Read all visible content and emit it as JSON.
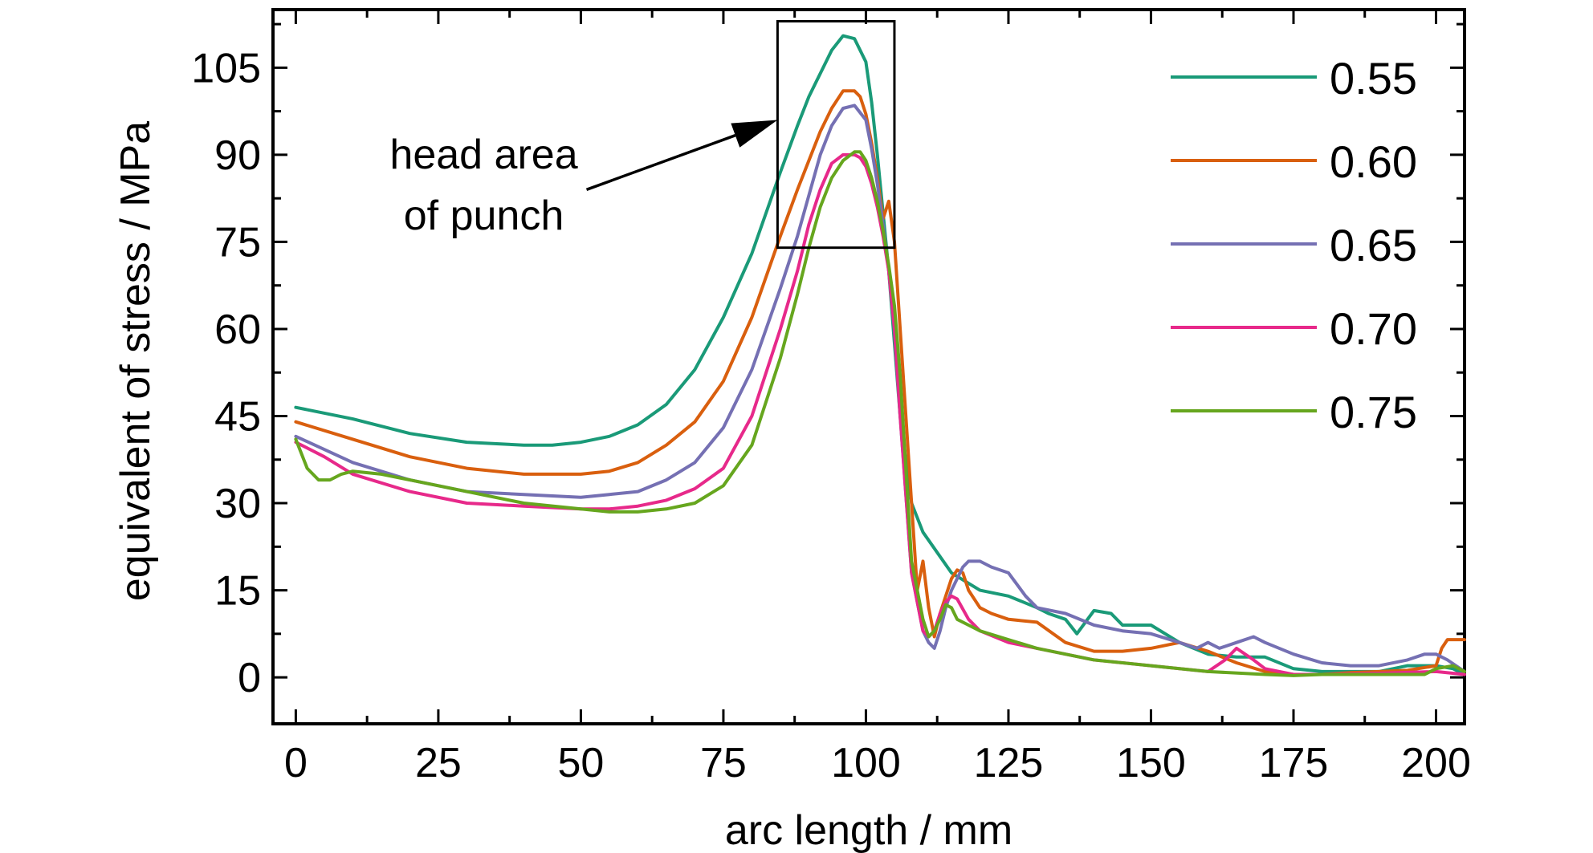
{
  "chart_data": {
    "type": "line",
    "xlabel": "arc length / mm",
    "ylabel": "equivalent of stress / MPa",
    "xlim": [
      -4,
      205
    ],
    "ylim": [
      -8,
      115
    ],
    "xticks": [
      0,
      25,
      50,
      75,
      100,
      125,
      150,
      175,
      200
    ],
    "yticks": [
      0,
      15,
      30,
      45,
      60,
      75,
      90,
      105
    ],
    "grid": false,
    "legend_position": "top-right",
    "annotation": {
      "lines": [
        "head area",
        "of punch"
      ],
      "box": {
        "x0": 84.5,
        "x1": 105,
        "y0": 74,
        "y1": 113
      },
      "arrow_from": {
        "x": 51,
        "y": 84
      },
      "arrow_to": {
        "x": 84.5,
        "y": 96
      }
    },
    "series": [
      {
        "name": "0.55",
        "color": "#1a9a78",
        "x": [
          0,
          10,
          20,
          30,
          40,
          45,
          50,
          55,
          60,
          65,
          70,
          75,
          80,
          85,
          88,
          90,
          92,
          94,
          96,
          98,
          100,
          101,
          102,
          103,
          104,
          106,
          108,
          110,
          115,
          120,
          125,
          130,
          132,
          135,
          137,
          140,
          143,
          145,
          150,
          155,
          160,
          165,
          170,
          175,
          180,
          185,
          190,
          195,
          200,
          203,
          205
        ],
        "y": [
          46.5,
          44.5,
          42,
          40.5,
          40,
          40,
          40.5,
          41.5,
          43.5,
          47,
          53,
          62,
          73,
          87,
          95,
          100,
          104,
          108,
          110.5,
          110,
          106,
          99,
          90,
          80,
          70,
          45,
          30,
          25,
          18,
          15,
          14,
          12,
          11,
          10,
          7.5,
          11.5,
          11,
          9,
          9,
          6,
          4,
          3.5,
          3.5,
          1.5,
          1,
          1,
          1,
          2,
          2,
          1.5,
          0.5
        ]
      },
      {
        "name": "0.60",
        "color": "#d95f0e",
        "x": [
          0,
          10,
          20,
          30,
          40,
          50,
          55,
          60,
          65,
          70,
          75,
          80,
          85,
          88,
          90,
          92,
          94,
          96,
          98,
          99,
          100,
          101,
          102,
          103,
          104,
          105,
          106,
          108,
          109,
          110,
          111,
          112,
          113,
          114,
          115,
          116,
          117,
          118,
          120,
          122,
          125,
          130,
          135,
          140,
          145,
          150,
          155,
          160,
          165,
          170,
          175,
          180,
          185,
          190,
          195,
          200,
          201,
          202,
          205
        ],
        "y": [
          44,
          41,
          38,
          36,
          35,
          35,
          35.5,
          37,
          40,
          44,
          51,
          62,
          76,
          84,
          89,
          94,
          98,
          101,
          101,
          100,
          97,
          92,
          86,
          79,
          82,
          75,
          60,
          30,
          15,
          20,
          12,
          7,
          11,
          14,
          17,
          18.5,
          18,
          15,
          12,
          11,
          10,
          9.5,
          6,
          4.5,
          4.5,
          5,
          6,
          4.5,
          2.5,
          1,
          0.5,
          0.5,
          0.8,
          1,
          1.2,
          2,
          5,
          6.5,
          6.5
        ]
      },
      {
        "name": "0.65",
        "color": "#7570b3",
        "x": [
          0,
          10,
          20,
          30,
          40,
          50,
          55,
          60,
          65,
          70,
          75,
          80,
          85,
          88,
          90,
          92,
          94,
          96,
          98,
          100,
          101,
          102,
          103,
          104,
          105,
          106,
          108,
          110,
          111,
          112,
          113,
          114,
          115,
          116,
          117,
          118,
          120,
          122,
          125,
          128,
          130,
          135,
          140,
          145,
          150,
          155,
          158,
          160,
          162,
          165,
          168,
          170,
          175,
          180,
          185,
          190,
          195,
          198,
          200,
          202,
          205
        ],
        "y": [
          41.5,
          37,
          34,
          32,
          31.5,
          31,
          31.5,
          32,
          34,
          37,
          43,
          53,
          67,
          76,
          83,
          90,
          95,
          98,
          98.5,
          96,
          91,
          85,
          78,
          70,
          60,
          45,
          18,
          8,
          6,
          5,
          8,
          12,
          15,
          17,
          19,
          20,
          20,
          19,
          18,
          14,
          12,
          11,
          9,
          8,
          7.5,
          6,
          5,
          6,
          5,
          6,
          7,
          6,
          4,
          2.5,
          2,
          2,
          3,
          4,
          4,
          3,
          1
        ]
      },
      {
        "name": "0.70",
        "color": "#e7298a",
        "x": [
          0,
          5,
          10,
          20,
          30,
          40,
          50,
          55,
          60,
          65,
          70,
          75,
          80,
          85,
          88,
          90,
          92,
          94,
          96,
          98,
          99,
          100,
          101,
          102,
          103,
          104,
          105,
          106,
          108,
          110,
          111,
          112,
          113,
          114,
          115,
          116,
          118,
          120,
          125,
          130,
          140,
          150,
          160,
          163,
          165,
          168,
          170,
          175,
          180,
          190,
          200,
          205
        ],
        "y": [
          40.5,
          38,
          35,
          32,
          30,
          29.5,
          29,
          29,
          29.5,
          30.5,
          32.5,
          36,
          45,
          60,
          70,
          78,
          84,
          88.5,
          90,
          90,
          89.5,
          88,
          85,
          81,
          76,
          70,
          60,
          45,
          18,
          8,
          7,
          8,
          11,
          13,
          14,
          13.5,
          10,
          8,
          6,
          5,
          3,
          2,
          1,
          3,
          5,
          3,
          1.5,
          0.5,
          0.5,
          0.7,
          1,
          0.5
        ]
      },
      {
        "name": "0.75",
        "color": "#66a61e",
        "x": [
          0,
          2,
          4,
          6,
          8,
          10,
          15,
          20,
          30,
          40,
          50,
          55,
          60,
          65,
          70,
          75,
          80,
          85,
          88,
          90,
          92,
          94,
          96,
          98,
          99,
          100,
          101,
          102,
          103,
          104,
          105,
          106,
          108,
          110,
          111,
          112,
          113,
          114,
          115,
          116,
          118,
          120,
          125,
          130,
          140,
          150,
          160,
          170,
          175,
          180,
          190,
          195,
          198,
          200,
          203,
          205
        ],
        "y": [
          41,
          36,
          34,
          34,
          35,
          35.5,
          35,
          34,
          32,
          30,
          29,
          28.5,
          28.5,
          29,
          30,
          33,
          40,
          55,
          66,
          74,
          81,
          86,
          89,
          90.5,
          90.5,
          89,
          86,
          82,
          77,
          71,
          64,
          52,
          20,
          10,
          7,
          8,
          10,
          12.5,
          12,
          10,
          9,
          8,
          6.5,
          5,
          3,
          2,
          1,
          0.5,
          0.3,
          0.5,
          0.5,
          0.5,
          0.5,
          1.5,
          2,
          1
        ]
      }
    ]
  }
}
